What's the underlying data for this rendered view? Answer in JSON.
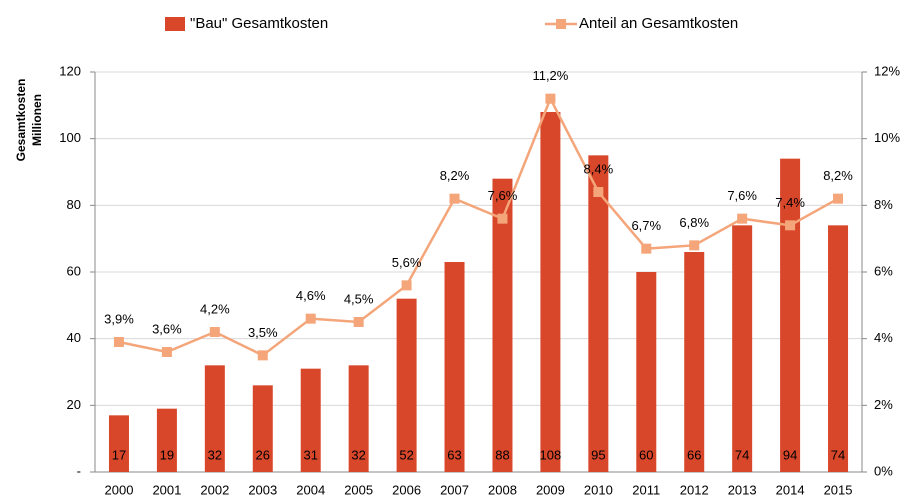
{
  "chart_data": {
    "type": "bar_line",
    "categories": [
      "2000",
      "2001",
      "2002",
      "2003",
      "2004",
      "2005",
      "2006",
      "2007",
      "2008",
      "2009",
      "2010",
      "2011",
      "2012",
      "2013",
      "2014",
      "2015"
    ],
    "series": [
      {
        "name": "\"Bau\" Gesamtkosten",
        "type": "bar",
        "color": "#d9472b",
        "axis": "y",
        "values": [
          17,
          19,
          32,
          26,
          31,
          32,
          52,
          63,
          88,
          108,
          95,
          60,
          66,
          74,
          94,
          74
        ]
      },
      {
        "name": "Anteil an Gesamtkosten",
        "type": "line",
        "color": "#f4a57a",
        "axis": "y2",
        "values": [
          3.9,
          3.6,
          4.2,
          3.5,
          4.6,
          4.5,
          5.6,
          8.2,
          7.6,
          11.2,
          8.4,
          6.7,
          6.8,
          7.6,
          7.4,
          8.2
        ],
        "value_labels": [
          "3,9%",
          "3,6%",
          "4,2%",
          "3,5%",
          "4,6%",
          "4,5%",
          "5,6%",
          "8,2%",
          "7,6%",
          "11,2%",
          "8,4%",
          "6,7%",
          "6,8%",
          "7,6%",
          "7,4%",
          "8,2%"
        ]
      }
    ],
    "ylabel": [
      "Gesamtkosten",
      "Millionen"
    ],
    "ylim": [
      0,
      120
    ],
    "yticks": [
      {
        "value": 0,
        "label": "-"
      },
      20,
      40,
      60,
      80,
      100,
      120
    ],
    "y2lim": [
      0,
      12
    ],
    "y2ticks": [
      {
        "value": 0,
        "label": "0%"
      },
      {
        "value": 2,
        "label": "2%"
      },
      {
        "value": 4,
        "label": "4%"
      },
      {
        "value": 6,
        "label": "6%"
      },
      {
        "value": 8,
        "label": "8%"
      },
      {
        "value": 10,
        "label": "10%"
      },
      {
        "value": 12,
        "label": "12%"
      }
    ],
    "grid": true,
    "legend": "top"
  }
}
